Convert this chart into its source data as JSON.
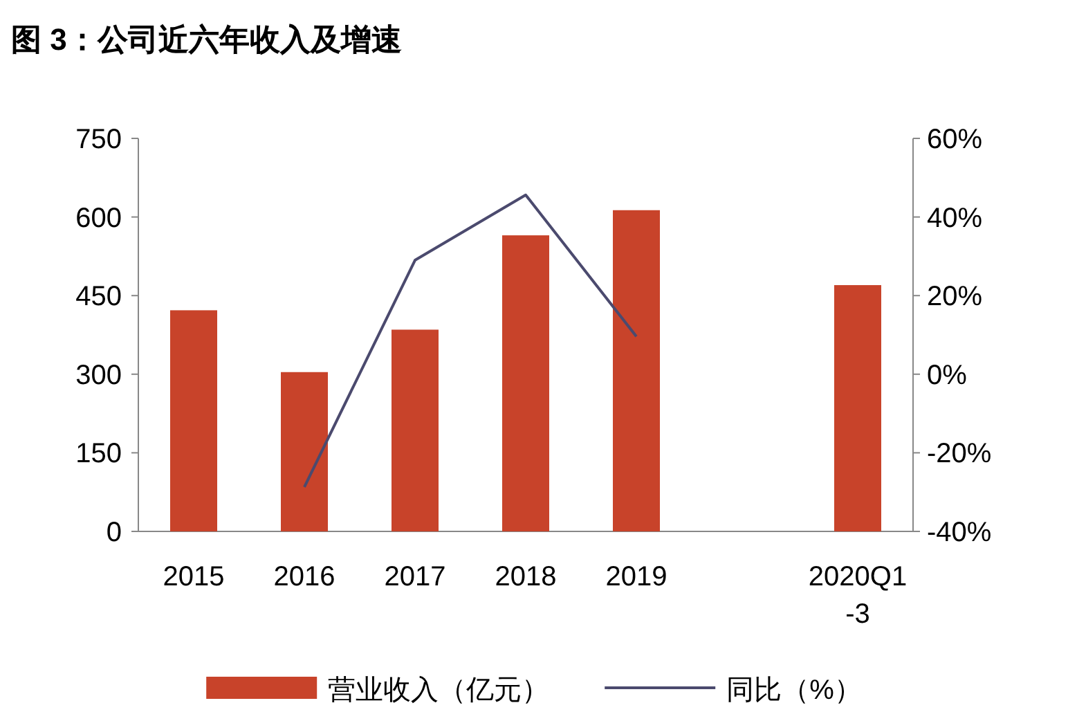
{
  "chart_data": {
    "type": "bar",
    "title": "图 3：公司近六年收入及增速",
    "categories": [
      "2015",
      "2016",
      "2017",
      "2018",
      "2019",
      null,
      "2020Q1-3"
    ],
    "series": [
      {
        "name": "营业收入（亿元）",
        "color": "#c8432a",
        "values": [
          422,
          304,
          385,
          565,
          613,
          null,
          470
        ]
      },
      {
        "name": "同比（%）",
        "type": "line",
        "axis": "y2",
        "color": "#4b4a6e",
        "values": [
          null,
          -28.7,
          29,
          45.6,
          9.6,
          null,
          null
        ]
      }
    ],
    "ylim": [
      0,
      750
    ],
    "yticks": [
      0,
      150,
      300,
      450,
      600,
      750
    ],
    "y2lim": [
      -40,
      60
    ],
    "y2ticks": [
      {
        "value": -40,
        "label": "-40%"
      },
      {
        "value": -20,
        "label": "-20%"
      },
      {
        "value": 0,
        "label": "0%"
      },
      {
        "value": 20,
        "label": "20%"
      },
      {
        "value": 40,
        "label": "40%"
      },
      {
        "value": 60,
        "label": "60%"
      }
    ],
    "legend": "bottom"
  }
}
